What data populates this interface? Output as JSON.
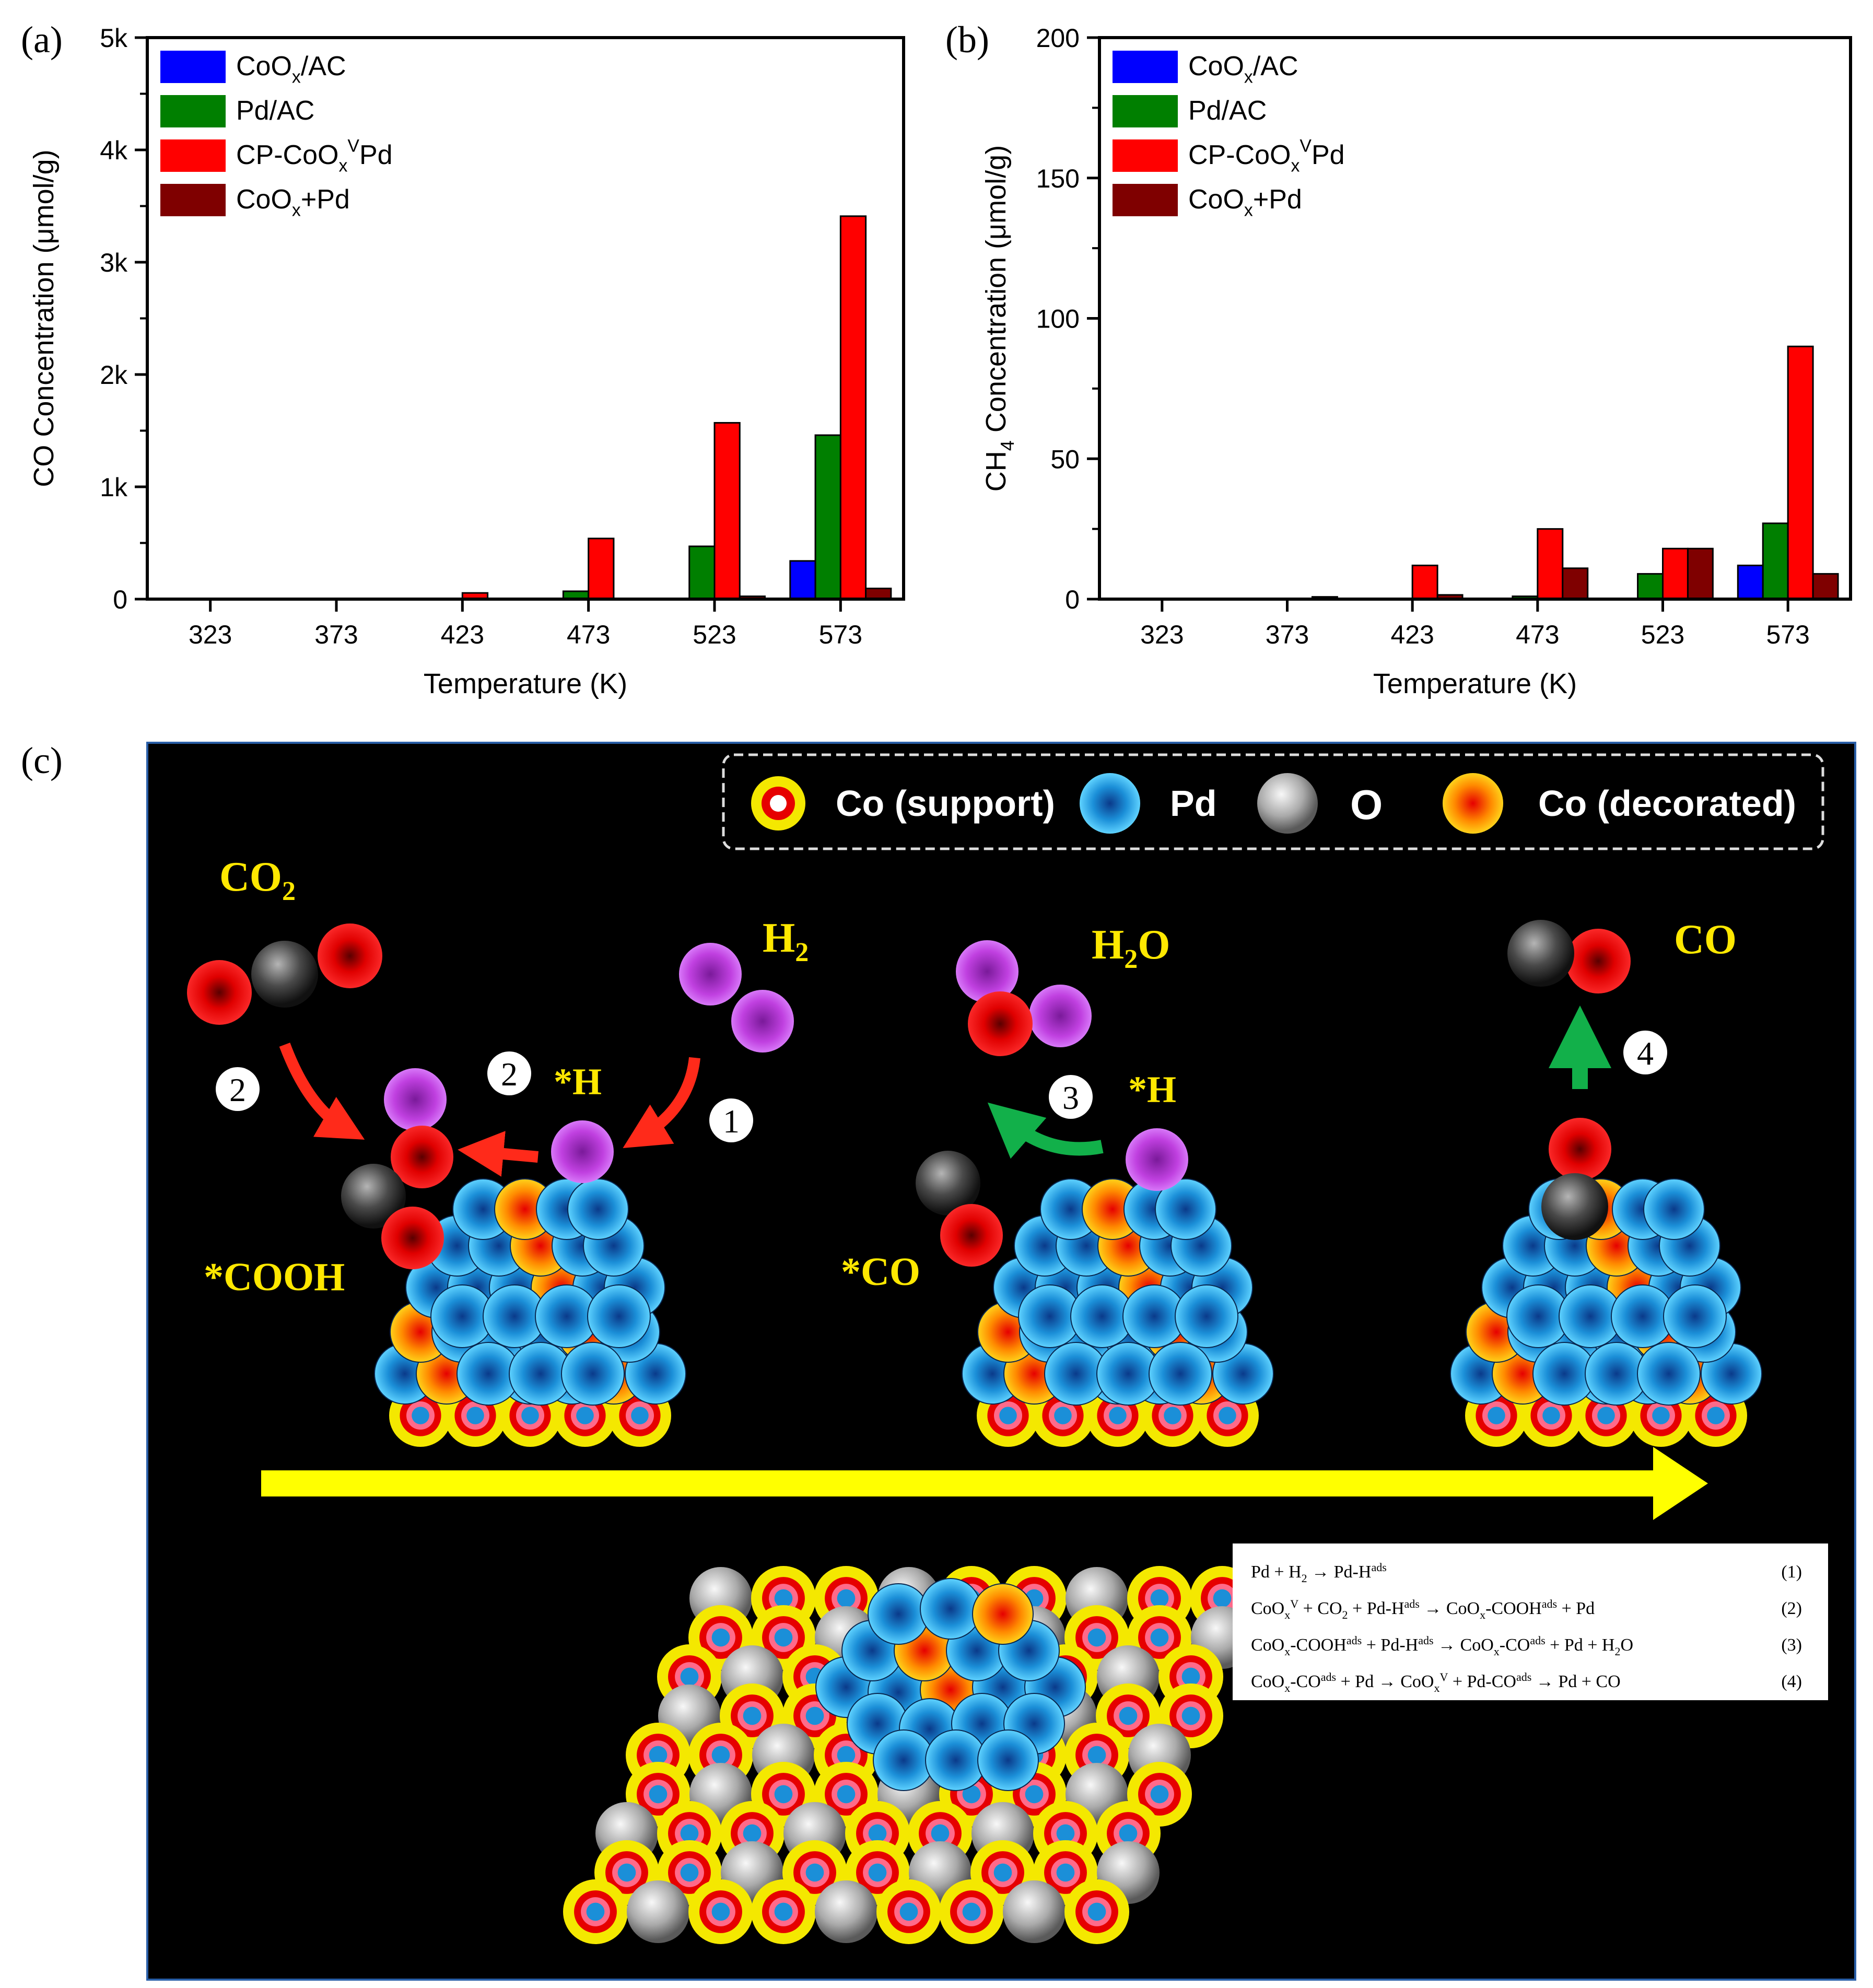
{
  "panel_labels": {
    "a": "(a)",
    "b": "(b)",
    "c": "(c)"
  },
  "series_colors": [
    "#0000ff",
    "#007f00",
    "#ff0000",
    "#7f0000"
  ],
  "legend_a": [
    {
      "base": "CoO",
      "sub": "x",
      "sup": "",
      "tail": "/AC"
    },
    {
      "base": "Pd/AC",
      "sub": "",
      "sup": "",
      "tail": ""
    },
    {
      "base": "CP-CoO",
      "sub": "x",
      "sup": "V",
      "tail": "Pd"
    },
    {
      "base": "CoO",
      "sub": "x",
      "sup": "",
      "tail": "+Pd"
    }
  ],
  "legend_b": [
    {
      "base": "CoO",
      "sub": "x",
      "sup": "",
      "tail": "/AC"
    },
    {
      "base": "Pd/AC",
      "sub": "",
      "sup": "",
      "tail": ""
    },
    {
      "base": "CP-CoO",
      "sub": "x",
      "sup": "V",
      "tail": "Pd"
    },
    {
      "base": "CoO",
      "sub": "x",
      "sup": "",
      "tail": "+Pd"
    }
  ],
  "chart_data": [
    {
      "type": "bar",
      "panel": "(a)",
      "categories": [
        "323",
        "373",
        "423",
        "473",
        "523",
        "573"
      ],
      "series": [
        {
          "name": "CoOx/AC",
          "values": [
            0,
            0,
            0,
            0,
            0,
            340
          ]
        },
        {
          "name": "Pd/AC",
          "values": [
            0,
            0,
            0,
            70,
            470,
            1460
          ]
        },
        {
          "name": "CP-CoOxVPd",
          "values": [
            0,
            0,
            55,
            540,
            1570,
            3410
          ]
        },
        {
          "name": "CoOx+Pd",
          "values": [
            0,
            0,
            0,
            0,
            25,
            95
          ]
        }
      ],
      "xlabel": "Temperature (K)",
      "ylabel": "CO Concentration (μmol/g)",
      "ylim": [
        0,
        5000
      ],
      "yticks": [
        0,
        1000,
        2000,
        3000,
        4000,
        5000
      ],
      "ytick_labels": [
        "0",
        "1k",
        "2k",
        "3k",
        "4k",
        "5k"
      ],
      "legend": "top-left"
    },
    {
      "type": "bar",
      "panel": "(b)",
      "categories": [
        "323",
        "373",
        "423",
        "473",
        "523",
        "573"
      ],
      "series": [
        {
          "name": "CoOx/AC",
          "values": [
            0,
            0,
            0,
            0,
            0,
            12
          ]
        },
        {
          "name": "Pd/AC",
          "values": [
            0,
            0,
            0,
            1,
            9,
            27
          ]
        },
        {
          "name": "CP-CoOxVPd",
          "values": [
            0,
            0,
            12,
            25,
            18,
            90
          ]
        },
        {
          "name": "CoOx+Pd",
          "values": [
            0,
            0.8,
            1.5,
            11,
            18,
            9
          ]
        }
      ],
      "xlabel": "Temperature (K)",
      "ylabel_base": "CH",
      "ylabel_sub": "4",
      "ylabel_tail": " Concentration (μmol/g)",
      "ylim": [
        0,
        200
      ],
      "yticks": [
        0,
        50,
        100,
        150,
        200
      ],
      "ytick_labels": [
        "0",
        "50",
        "100",
        "150",
        "200"
      ],
      "legend": "top-left"
    }
  ],
  "mechanism": {
    "legend": {
      "co_support": "Co (support)",
      "pd": "Pd",
      "o": "O",
      "co_decorated": "Co (decorated)"
    },
    "labels": {
      "co2": "CO",
      "co2_sub": "2",
      "h2": "H",
      "h2_sub": "2",
      "h2o_h": "H",
      "h2o_sub": "2",
      "h2o_o": "O",
      "co": "CO",
      "h_ads_1": "*H",
      "h_ads_2": "*H",
      "cooh": "*COOH",
      "co_ads": "*CO"
    },
    "steps": [
      "2",
      "2",
      "1",
      "3",
      "4"
    ],
    "equations": [
      {
        "parts": [
          "Pd + H",
          "2",
          " → Pd-H",
          "ads"
        ],
        "number": "(1)"
      },
      {
        "parts": [
          "CoO",
          "x",
          "V",
          " + CO",
          "2",
          " + Pd-H",
          "ads",
          " → CoO",
          "x",
          "-COOH",
          "ads",
          " + Pd"
        ],
        "number": "(2)"
      },
      {
        "parts": [
          "CoO",
          "x",
          "-COOH",
          "ads",
          " + Pd-H",
          "ads",
          " → CoO",
          "x",
          "-CO",
          "ads",
          " + Pd + H",
          "2",
          "O"
        ],
        "number": "(3)"
      },
      {
        "parts": [
          "CoO",
          "x",
          "-CO",
          "ads",
          " + Pd → CoO",
          "x",
          "V",
          " + Pd-CO",
          "ads",
          " → Pd + CO"
        ],
        "number": "(4)"
      }
    ]
  }
}
